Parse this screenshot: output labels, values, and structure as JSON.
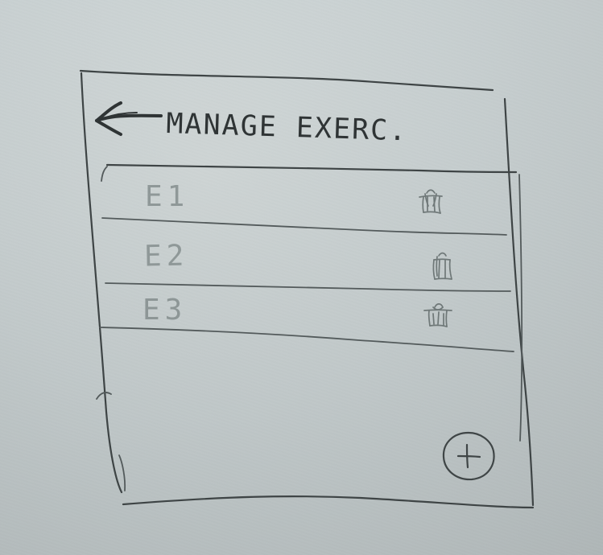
{
  "header": {
    "title": "MANAGE EXERC."
  },
  "exercises": [
    {
      "label": "E1"
    },
    {
      "label": "E2"
    },
    {
      "label": "E3"
    }
  ],
  "icons": {
    "back": "arrow-left-icon",
    "delete": "trash-icon",
    "add": "plus-circle-icon"
  },
  "colors": {
    "paper": "#c9d1d2",
    "ink": "#2f3435",
    "pencil": "#8f9898"
  }
}
